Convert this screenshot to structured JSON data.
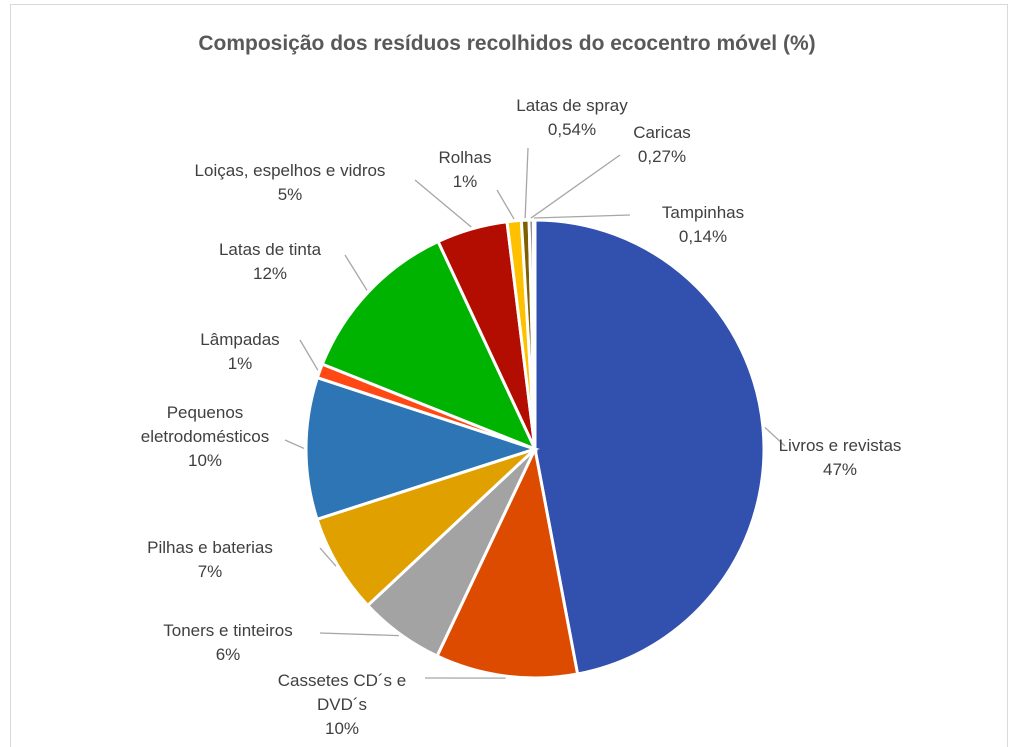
{
  "chart_data": {
    "type": "pie",
    "title": "Composição dos resíduos recolhidos do ecocentro móvel (%)",
    "categories": [
      "Livros e revistas",
      "Cassetes CD´s e DVD´s",
      "Toners e tinteiros",
      "Pilhas e baterias",
      "Pequenos eletrodomésticos",
      "Lâmpadas",
      "Latas de tinta",
      "Loiças, espelhos e vidros",
      "Rolhas",
      "Latas de spray",
      "Caricas",
      "Tampinhas"
    ],
    "values": [
      47,
      10,
      6,
      7,
      10,
      1,
      12,
      5,
      1,
      0.54,
      0.27,
      0.14
    ],
    "value_labels": [
      "47%",
      "10%",
      "6%",
      "7%",
      "10%",
      "1%",
      "12%",
      "5%",
      "1%",
      "0,54%",
      "0,27%",
      "0,14%"
    ],
    "colors": [
      "#3250ad",
      "#dd4b00",
      "#a3a3a3",
      "#e0a100",
      "#2e75b6",
      "#ff4813",
      "#00b300",
      "#b30c00",
      "#ffc000",
      "#7f6000",
      "#3b2a1a",
      "#1f3864"
    ]
  }
}
